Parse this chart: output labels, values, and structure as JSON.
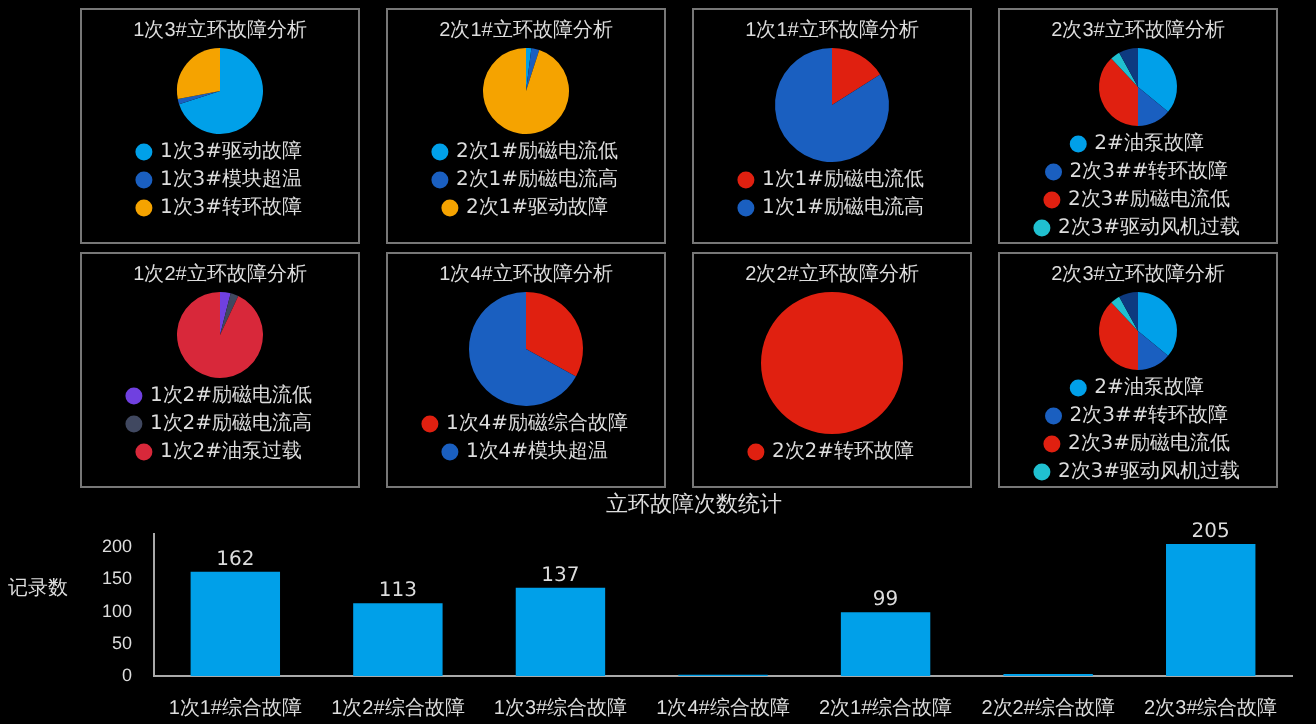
{
  "chart_data": [
    {
      "type": "pie",
      "title": "1次3#立环故障分析",
      "categories": [
        "1次3#驱动故障",
        "1次3#模块超温",
        "1次3#转环故障"
      ],
      "values": [
        70,
        2,
        28
      ],
      "colors": [
        "#00a0e9",
        "#1a5fc0",
        "#f5a300"
      ],
      "legend": "bottom"
    },
    {
      "type": "pie",
      "title": "2次1#立环故障分析",
      "categories": [
        "2次1#励磁电流低",
        "2次1#励磁电流高",
        "2次1#驱动故障"
      ],
      "values": [
        2,
        3,
        95
      ],
      "colors": [
        "#00a0e9",
        "#1a5fc0",
        "#f5a300"
      ],
      "legend": "bottom"
    },
    {
      "type": "pie",
      "title": "1次1#立环故障分析",
      "categories": [
        "1次1#励磁电流低",
        "1次1#励磁电流高"
      ],
      "values": [
        16,
        84
      ],
      "colors": [
        "#e02010",
        "#1a5fc0"
      ],
      "legend": "bottom"
    },
    {
      "type": "pie",
      "title": "2次3#立环故障分析",
      "categories": [
        "2#油泵故障",
        "2次3##转环故障",
        "2次3#励磁电流低",
        "2次3#驱动风机过载",
        null
      ],
      "values": [
        36,
        14,
        38,
        4,
        8
      ],
      "colors": [
        "#00a0e9",
        "#1a5fc0",
        "#e02010",
        "#20c0d0",
        "#0d3a80"
      ],
      "legend": "bottom"
    },
    {
      "type": "pie",
      "title": "1次2#立环故障分析",
      "categories": [
        "1次2#励磁电流低",
        "1次2#励磁电流高",
        "1次2#油泵过载"
      ],
      "values": [
        4,
        3,
        93
      ],
      "colors": [
        "#7040e0",
        "#404860",
        "#d8283a"
      ],
      "legend": "bottom"
    },
    {
      "type": "pie",
      "title": "1次4#立环故障分析",
      "categories": [
        "1次4#励磁综合故障",
        "1次4#模块超温"
      ],
      "values": [
        33,
        67
      ],
      "colors": [
        "#e02010",
        "#1a5fc0"
      ],
      "legend": "bottom"
    },
    {
      "type": "pie",
      "title": "2次2#立环故障分析",
      "categories": [
        "2次2#转环故障"
      ],
      "values": [
        100
      ],
      "colors": [
        "#e02010"
      ],
      "legend": "bottom"
    },
    {
      "type": "pie",
      "title": "2次3#立环故障分析",
      "categories": [
        "2#油泵故障",
        "2次3##转环故障",
        "2次3#励磁电流低",
        "2次3#驱动风机过载",
        null
      ],
      "values": [
        36,
        14,
        38,
        4,
        8
      ],
      "colors": [
        "#00a0e9",
        "#1a5fc0",
        "#e02010",
        "#20c0d0",
        "#0d3a80"
      ],
      "legend": "bottom"
    },
    {
      "type": "bar",
      "title": "立环故障次数统计",
      "ylabel": "记录数",
      "categories": [
        "1次1#综合故障",
        "1次2#综合故障",
        "1次3#综合故障",
        "1次4#综合故障",
        "2次1#综合故障",
        "2次2#综合故障",
        "2次3#综合故障"
      ],
      "values": [
        162,
        113,
        137,
        2,
        99,
        3,
        205
      ],
      "color": "#00a0e9",
      "value_labels": [
        "162",
        "113",
        "137",
        null,
        "99",
        null,
        "205"
      ],
      "ylim": [
        0,
        220
      ],
      "yticks": [
        0,
        50,
        100,
        150,
        200
      ]
    }
  ]
}
